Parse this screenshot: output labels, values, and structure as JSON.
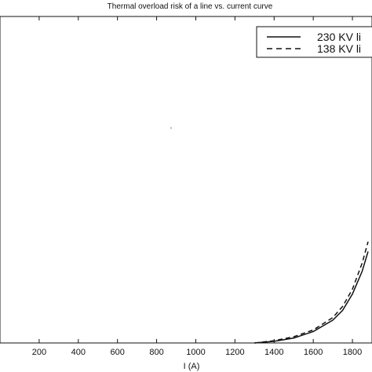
{
  "chart_data": {
    "type": "line",
    "title": "Thermal overload risk of a line vs. current curve",
    "xlabel": "I (A)",
    "ylabel": "",
    "xlim": [
      0,
      1900
    ],
    "ylim": [
      0,
      1
    ],
    "x_ticks": [
      "200",
      "400",
      "600",
      "800",
      "1000",
      "1200",
      "1400",
      "1600",
      "1800"
    ],
    "grid": false,
    "legend": {
      "position": "top-right",
      "entries": [
        "230 KV li",
        "138 KV li"
      ]
    },
    "series": [
      {
        "name": "230 KV li",
        "style": "solid",
        "x": [
          1300,
          1400,
          1500,
          1600,
          1700,
          1750,
          1800,
          1850,
          1880
        ],
        "y": [
          0,
          0.005,
          0.015,
          0.035,
          0.07,
          0.1,
          0.15,
          0.22,
          0.28
        ]
      },
      {
        "name": "138 KV li",
        "style": "dashed",
        "x": [
          1300,
          1400,
          1500,
          1600,
          1700,
          1750,
          1800,
          1850,
          1880
        ],
        "y": [
          0,
          0.007,
          0.019,
          0.04,
          0.078,
          0.112,
          0.165,
          0.245,
          0.31
        ]
      }
    ]
  }
}
